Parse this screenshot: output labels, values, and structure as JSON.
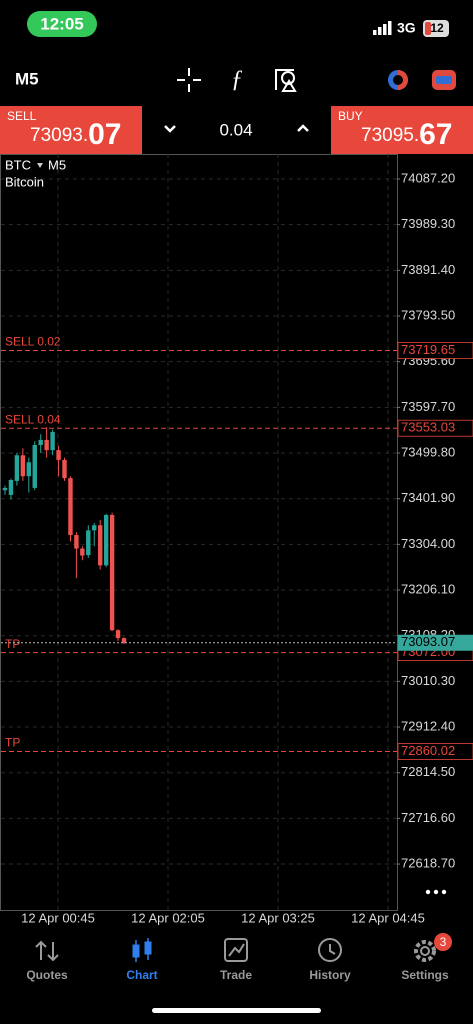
{
  "status_bar": {
    "time": "12:05",
    "network": "3G",
    "battery": "12"
  },
  "toolbar": {
    "timeframe": "M5"
  },
  "trade_panel": {
    "sell": {
      "label": "SELL",
      "price_main": "73093.",
      "price_big": "07"
    },
    "volume": "0.04",
    "buy": {
      "label": "BUY",
      "price_main": "73095.",
      "price_big": "67"
    }
  },
  "chart_data": {
    "type": "candlestick",
    "symbol": "BTC",
    "timeframe": "M5",
    "description": "Bitcoin",
    "up_color": "#26a69a",
    "down_color": "#ef5350",
    "open": [
      73420,
      73410,
      73440,
      73495,
      73450,
      73425,
      73517,
      73528,
      73506,
      73506,
      73485,
      73446,
      73324,
      73295,
      73281,
      73334,
      73345,
      73259,
      73367,
      73120,
      73103
    ],
    "high": [
      73430,
      73445,
      73500,
      73510,
      73490,
      73525,
      73540,
      73555,
      73550,
      73515,
      73490,
      73450,
      73330,
      73300,
      73345,
      73350,
      73356,
      73370,
      73372,
      73122,
      73105
    ],
    "low": [
      73410,
      73400,
      73430,
      73440,
      73415,
      73420,
      73500,
      73490,
      73495,
      73450,
      73440,
      73310,
      73232,
      73270,
      73275,
      73300,
      73250,
      73255,
      73118,
      73097,
      73090
    ],
    "close": [
      73425,
      73442,
      73495,
      73450,
      73480,
      73517,
      73528,
      73506,
      73545,
      73485,
      73446,
      73324,
      73295,
      73280,
      73334,
      73345,
      73259,
      73367,
      73120,
      73103,
      73093
    ],
    "ylim": [
      72520.2,
      74140.8
    ],
    "yticks": [
      {
        "value": 74087.2,
        "label": "74087.20"
      },
      {
        "value": 73989.3,
        "label": "73989.30"
      },
      {
        "value": 73891.4,
        "label": "73891.40"
      },
      {
        "value": 73793.5,
        "label": "73793.50"
      },
      {
        "value": 73695.6,
        "label": "73695.60"
      },
      {
        "value": 73597.7,
        "label": "73597.70"
      },
      {
        "value": 73499.8,
        "label": "73499.80"
      },
      {
        "value": 73401.9,
        "label": "73401.90"
      },
      {
        "value": 73304,
        "label": "73304.00"
      },
      {
        "value": 73206.1,
        "label": "73206.10"
      },
      {
        "value": 73108.2,
        "label": "73108.20"
      },
      {
        "value": 73010.3,
        "label": "73010.30"
      },
      {
        "value": 72912.4,
        "label": "72912.40"
      },
      {
        "value": 72814.5,
        "label": "72814.50"
      },
      {
        "value": 72716.6,
        "label": "72716.60"
      },
      {
        "value": 72618.7,
        "label": "72618.70"
      }
    ],
    "x_tick_labels": [
      "12 Apr 00:45",
      "12 Apr 02:05",
      "12 Apr 03:25",
      "12 Apr 04:45"
    ],
    "grid": true,
    "lines": [
      {
        "name": "SELL 0.02",
        "value": 73719.65,
        "color": "#e8473c"
      },
      {
        "name": "SELL 0.04",
        "value": 73553.03,
        "color": "#e8473c"
      },
      {
        "name": "TP",
        "value": 73072,
        "value_label": "73072.00",
        "color": "#e8473c"
      },
      {
        "name": "TP",
        "value": 72860.02,
        "color": "#e8473c"
      }
    ],
    "bid": {
      "value": 73093.07,
      "color": "#35a89b"
    }
  },
  "nav": {
    "items": [
      {
        "label": "Quotes"
      },
      {
        "label": "Chart"
      },
      {
        "label": "Trade"
      },
      {
        "label": "History"
      },
      {
        "label": "Settings"
      }
    ],
    "badge": "3"
  }
}
